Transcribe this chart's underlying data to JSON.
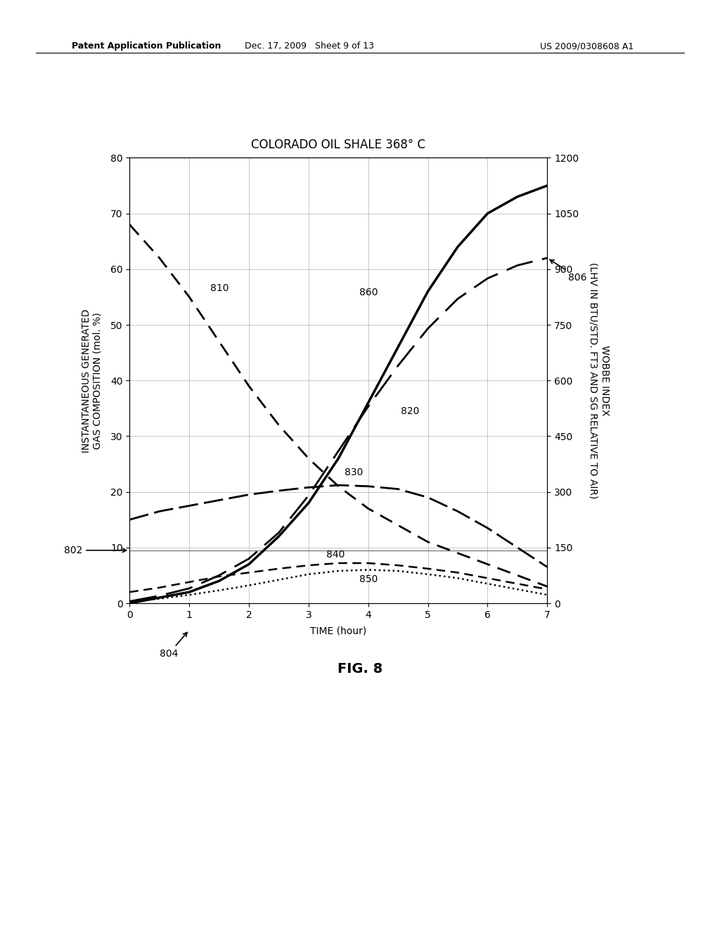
{
  "title": "COLORADO OIL SHALE 368° C",
  "xlabel": "TIME (hour)",
  "ylabel_left": "INSTANTANEOUS GENERATED\nGAS COMPOSITION (mol. %)",
  "ylabel_right": "WOBBE INDEX\n(LHV IN BTU/STD. FT3 AND SG RELATIVE TO AIR)",
  "xlim": [
    0,
    7
  ],
  "ylim_left": [
    0,
    80
  ],
  "ylim_right": [
    0,
    1200
  ],
  "xticks": [
    0,
    1,
    2,
    3,
    4,
    5,
    6,
    7
  ],
  "yticks_left": [
    0,
    10,
    20,
    30,
    40,
    50,
    60,
    70,
    80
  ],
  "yticks_right": [
    0,
    150,
    300,
    450,
    600,
    750,
    900,
    1050,
    1200
  ],
  "curve_810": {
    "x": [
      0,
      0.5,
      1.0,
      1.5,
      2.0,
      2.5,
      3.0,
      3.5,
      4.0,
      4.5,
      5.0,
      5.5,
      6.0,
      6.5,
      7.0
    ],
    "y": [
      68,
      62,
      55,
      47,
      39,
      32,
      26,
      21,
      17,
      14,
      11,
      9,
      7,
      5,
      3
    ],
    "linewidth": 2.0,
    "color": "black",
    "dashes": [
      7,
      4
    ]
  },
  "curve_820": {
    "x": [
      0,
      0.5,
      1.0,
      1.5,
      2.0,
      2.5,
      3.0,
      3.5,
      4.0,
      4.5,
      5.0,
      5.5,
      6.0,
      6.5,
      7.0
    ],
    "y": [
      0,
      1,
      2,
      4,
      7,
      12,
      18,
      26,
      36,
      46,
      56,
      64,
      70,
      73,
      75
    ],
    "linewidth": 2.5,
    "color": "black"
  },
  "curve_830": {
    "x": [
      0,
      0.5,
      1.0,
      1.5,
      2.0,
      2.5,
      3.0,
      3.5,
      4.0,
      4.5,
      5.0,
      5.5,
      6.0,
      6.5,
      7.0
    ],
    "y": [
      15,
      16.5,
      17.5,
      18.5,
      19.5,
      20.2,
      20.8,
      21.2,
      21.0,
      20.5,
      19.0,
      16.5,
      13.5,
      10.0,
      6.5
    ],
    "linewidth": 2.0,
    "color": "black",
    "dashes": [
      10,
      3
    ]
  },
  "curve_840": {
    "x": [
      0,
      0.5,
      1.0,
      1.5,
      2.0,
      2.5,
      3.0,
      3.5,
      4.0,
      4.5,
      5.0,
      5.5,
      6.0,
      6.5,
      7.0
    ],
    "y": [
      2.0,
      2.8,
      3.8,
      4.8,
      5.5,
      6.2,
      6.8,
      7.2,
      7.2,
      6.8,
      6.2,
      5.5,
      4.5,
      3.5,
      2.5
    ],
    "linewidth": 1.8,
    "color": "black",
    "dashes": [
      5,
      3
    ]
  },
  "curve_850": {
    "x": [
      0,
      0.5,
      1.0,
      1.5,
      2.0,
      2.5,
      3.0,
      3.5,
      4.0,
      4.5,
      5.0,
      5.5,
      6.0,
      6.5,
      7.0
    ],
    "y": [
      0.3,
      0.8,
      1.5,
      2.3,
      3.2,
      4.2,
      5.2,
      5.8,
      6.0,
      5.8,
      5.2,
      4.5,
      3.5,
      2.5,
      1.5
    ],
    "linewidth": 1.8,
    "color": "black",
    "dotsize": 2
  },
  "curve_806": {
    "x": [
      0,
      0.5,
      1.0,
      1.5,
      2.0,
      2.5,
      3.0,
      3.5,
      4.0,
      4.5,
      5.0,
      5.5,
      6.0,
      6.5,
      7.0
    ],
    "y_right": [
      5,
      20,
      40,
      75,
      120,
      190,
      290,
      410,
      530,
      640,
      740,
      820,
      875,
      910,
      930
    ],
    "linewidth": 2.0,
    "color": "black",
    "dashes": [
      14,
      5
    ]
  },
  "hline_802_y": 9.5,
  "fig_label": "FIG. 8",
  "patent_line1": "Patent Application Publication",
  "patent_line2": "Dec. 17, 2009   Sheet 9 of 13",
  "patent_line3": "US 2009/0308608 A1",
  "background_color": "white",
  "label_fontsize": 10,
  "title_fontsize": 12,
  "tick_fontsize": 10,
  "annot_fontsize": 10
}
